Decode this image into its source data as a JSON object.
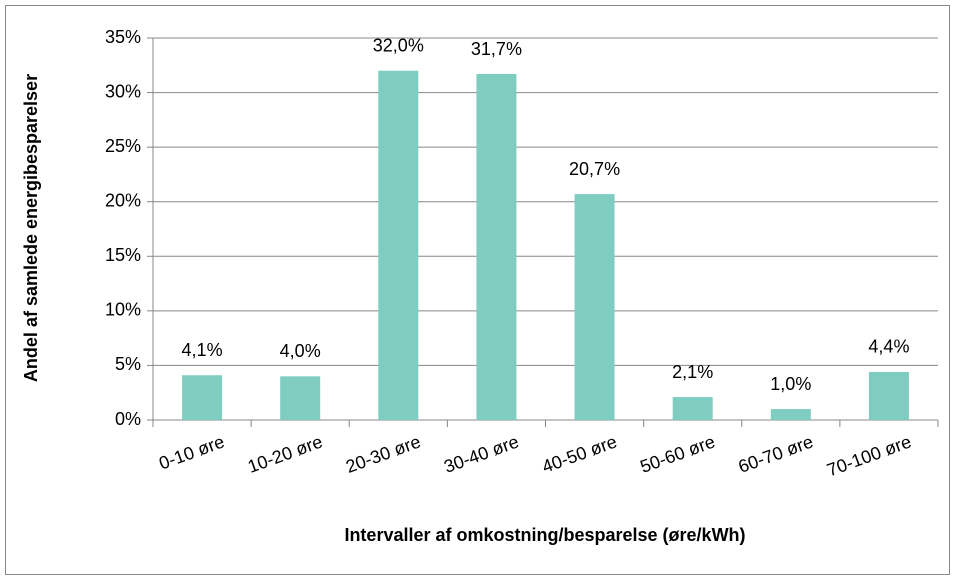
{
  "chart_data": {
    "type": "bar",
    "y_label": "Andel af samlede energibesparelser",
    "x_label": "Intervaller af omkostning/besparelse (øre/kWh)",
    "categories": [
      "0-10 øre",
      "10-20 øre",
      "20-30 øre",
      "30-40 øre",
      "40-50 øre",
      "50-60 øre",
      "60-70 øre",
      "70-100 øre"
    ],
    "values": [
      4.1,
      4.0,
      32.0,
      31.7,
      20.7,
      2.1,
      1.0,
      4.4
    ],
    "value_labels": [
      "4,1%",
      "4,0%",
      "32,0%",
      "31,7%",
      "20,7%",
      "2,1%",
      "1,0%",
      "4,4%"
    ],
    "color": "#7ecdc0",
    "ylim": [
      0,
      35
    ],
    "yticks": [
      {
        "value": 0,
        "label": "0%"
      },
      {
        "value": 5,
        "label": "5%"
      },
      {
        "value": 10,
        "label": "10%"
      },
      {
        "value": 15,
        "label": "15%"
      },
      {
        "value": 20,
        "label": "20%"
      },
      {
        "value": 25,
        "label": "25%"
      },
      {
        "value": 30,
        "label": "30%"
      },
      {
        "value": 35,
        "label": "35%"
      }
    ],
    "grid": true
  }
}
